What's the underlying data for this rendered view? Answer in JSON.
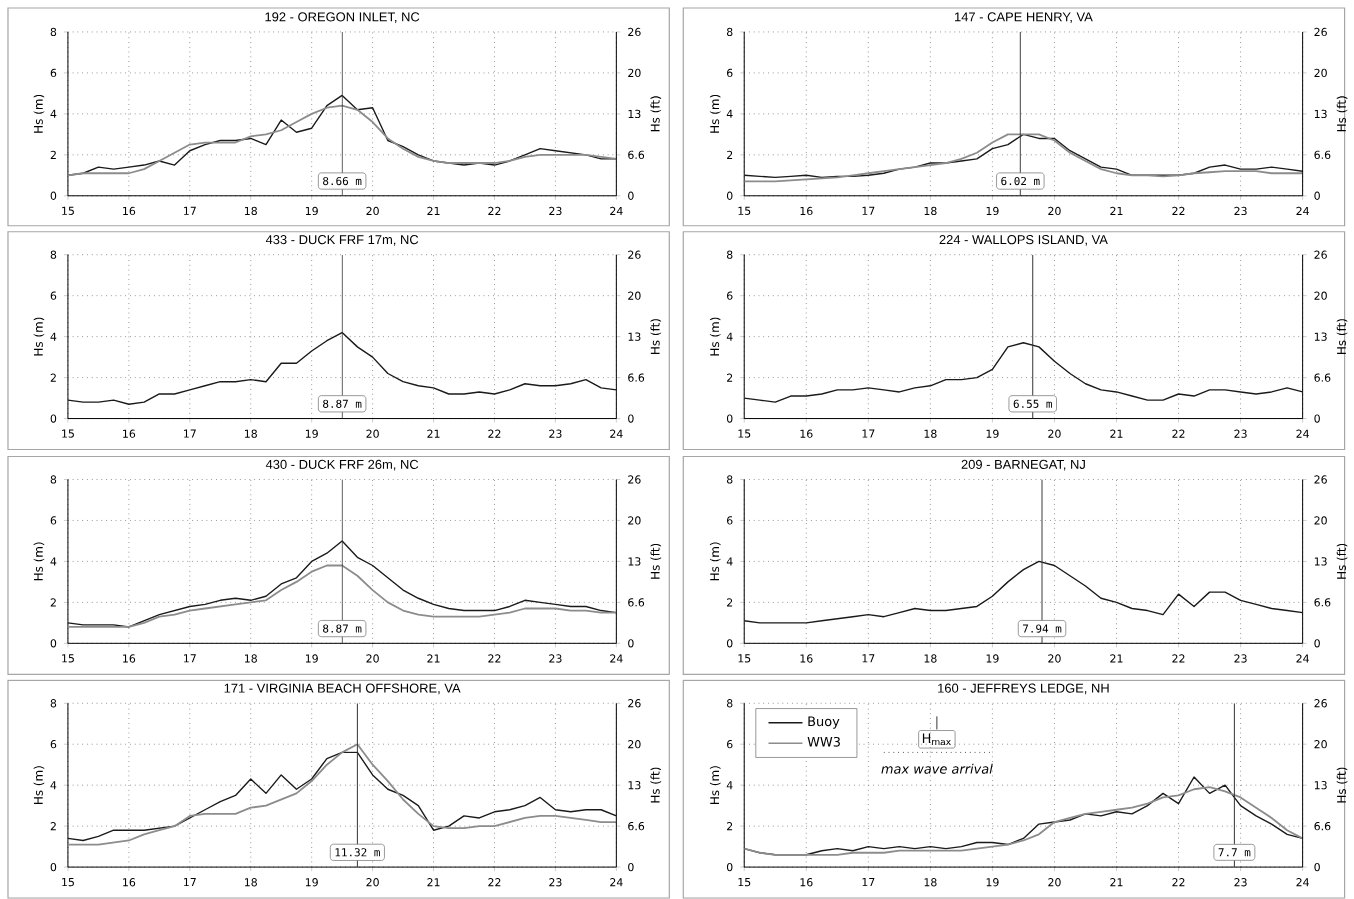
{
  "chart_data": [
    {
      "type": "line",
      "title": "192 - OREGON INLET, NC",
      "ylabel": "Hs (m)",
      "y2label": "Hs (ft)",
      "x": [
        15,
        15.25,
        15.5,
        15.75,
        16,
        16.25,
        16.5,
        16.75,
        17,
        17.25,
        17.5,
        17.75,
        18,
        18.25,
        18.5,
        18.75,
        19,
        19.25,
        19.5,
        19.75,
        20,
        20.25,
        20.5,
        20.75,
        21,
        21.25,
        21.5,
        21.75,
        22,
        22.25,
        22.5,
        22.75,
        23,
        23.25,
        23.5,
        23.75,
        24
      ],
      "series": [
        {
          "color": "#1a1a1a",
          "values": [
            1.0,
            1.1,
            1.4,
            1.3,
            1.4,
            1.5,
            1.7,
            1.5,
            2.2,
            2.5,
            2.7,
            2.7,
            2.8,
            2.5,
            3.7,
            3.1,
            3.3,
            4.4,
            4.9,
            4.2,
            4.3,
            2.7,
            2.4,
            2.0,
            1.7,
            1.6,
            1.5,
            1.6,
            1.5,
            1.7,
            2.0,
            2.3,
            2.2,
            2.1,
            2.0,
            1.8,
            1.8
          ]
        },
        {
          "color": "#8c8c8c",
          "values": [
            1.0,
            1.1,
            1.1,
            1.1,
            1.1,
            1.3,
            1.7,
            2.1,
            2.5,
            2.6,
            2.6,
            2.6,
            2.9,
            3.0,
            3.2,
            3.6,
            4.0,
            4.3,
            4.4,
            4.2,
            3.6,
            2.8,
            2.3,
            1.9,
            1.7,
            1.6,
            1.6,
            1.6,
            1.6,
            1.7,
            1.9,
            2.0,
            2.0,
            2.0,
            2.0,
            1.9,
            1.8
          ]
        }
      ],
      "xlim": [
        15,
        24
      ],
      "ylim": [
        0,
        8
      ],
      "xticks": [
        15,
        16,
        17,
        18,
        19,
        20,
        21,
        22,
        23,
        24
      ],
      "yticks": [
        0,
        2,
        4,
        6,
        8
      ],
      "y2lim": [
        0,
        26.25
      ],
      "y2ticks": [
        0,
        {
          "value": 6.56,
          "label": "6.6"
        },
        {
          "value": 13.12,
          "label": "13"
        },
        {
          "value": 19.69,
          "label": "20"
        },
        {
          "value": 26.25,
          "label": "26"
        }
      ],
      "ref_lines": [
        {
          "axis": "x",
          "value": 19.5,
          "label": "8.66 m"
        }
      ],
      "grid": true,
      "line_style": "solid"
    },
    {
      "type": "line",
      "title": "147 - CAPE HENRY, VA",
      "ylabel": "Hs (m)",
      "y2label": "Hs (ft)",
      "x": [
        15,
        15.25,
        15.5,
        15.75,
        16,
        16.25,
        16.5,
        16.75,
        17,
        17.25,
        17.5,
        17.75,
        18,
        18.25,
        18.5,
        18.75,
        19,
        19.25,
        19.5,
        19.75,
        20,
        20.25,
        20.5,
        20.75,
        21,
        21.25,
        21.5,
        21.75,
        22,
        22.25,
        22.5,
        22.75,
        23,
        23.25,
        23.5,
        23.75,
        24
      ],
      "series": [
        {
          "color": "#1a1a1a",
          "values": [
            1.0,
            0.95,
            0.9,
            0.95,
            1.0,
            0.9,
            0.95,
            0.95,
            1.0,
            1.1,
            1.3,
            1.4,
            1.6,
            1.6,
            1.7,
            1.8,
            2.3,
            2.5,
            3.0,
            2.8,
            2.8,
            2.2,
            1.8,
            1.4,
            1.3,
            1.0,
            1.0,
            1.0,
            1.0,
            1.1,
            1.4,
            1.5,
            1.3,
            1.3,
            1.4,
            1.3,
            1.2
          ]
        },
        {
          "color": "#8c8c8c",
          "values": [
            0.7,
            0.7,
            0.7,
            0.75,
            0.8,
            0.85,
            0.9,
            1.0,
            1.1,
            1.2,
            1.3,
            1.4,
            1.5,
            1.6,
            1.8,
            2.1,
            2.6,
            3.0,
            3.0,
            3.0,
            2.7,
            2.1,
            1.7,
            1.3,
            1.1,
            1.0,
            1.0,
            0.95,
            1.0,
            1.1,
            1.15,
            1.2,
            1.2,
            1.2,
            1.1,
            1.1,
            1.1
          ]
        }
      ],
      "xlim": [
        15,
        24
      ],
      "ylim": [
        0,
        8
      ],
      "xticks": [
        15,
        16,
        17,
        18,
        19,
        20,
        21,
        22,
        23,
        24
      ],
      "yticks": [
        0,
        2,
        4,
        6,
        8
      ],
      "y2lim": [
        0,
        26.25
      ],
      "y2ticks": [
        0,
        {
          "value": 6.56,
          "label": "6.6"
        },
        {
          "value": 13.12,
          "label": "13"
        },
        {
          "value": 19.69,
          "label": "20"
        },
        {
          "value": 26.25,
          "label": "26"
        }
      ],
      "ref_lines": [
        {
          "axis": "x",
          "value": 19.45,
          "label": "6.02 m"
        }
      ],
      "grid": true,
      "line_style": "solid"
    },
    {
      "type": "line",
      "title": "433 - DUCK FRF 17m, NC",
      "ylabel": "Hs (m)",
      "y2label": "Hs (ft)",
      "x": [
        15,
        15.25,
        15.5,
        15.75,
        16,
        16.25,
        16.5,
        16.75,
        17,
        17.25,
        17.5,
        17.75,
        18,
        18.25,
        18.5,
        18.75,
        19,
        19.25,
        19.5,
        19.75,
        20,
        20.25,
        20.5,
        20.75,
        21,
        21.25,
        21.5,
        21.75,
        22,
        22.25,
        22.5,
        22.75,
        23,
        23.25,
        23.5,
        23.75,
        24
      ],
      "series": [
        {
          "color": "#1a1a1a",
          "values": [
            0.9,
            0.8,
            0.8,
            0.9,
            0.7,
            0.8,
            1.2,
            1.2,
            1.4,
            1.6,
            1.8,
            1.8,
            1.9,
            1.8,
            2.7,
            2.7,
            3.3,
            3.8,
            4.2,
            3.5,
            3.0,
            2.2,
            1.8,
            1.6,
            1.5,
            1.2,
            1.2,
            1.3,
            1.2,
            1.4,
            1.7,
            1.6,
            1.6,
            1.7,
            1.9,
            1.5,
            1.4
          ]
        }
      ],
      "xlim": [
        15,
        24
      ],
      "ylim": [
        0,
        8
      ],
      "xticks": [
        15,
        16,
        17,
        18,
        19,
        20,
        21,
        22,
        23,
        24
      ],
      "yticks": [
        0,
        2,
        4,
        6,
        8
      ],
      "y2lim": [
        0,
        26.25
      ],
      "y2ticks": [
        0,
        {
          "value": 6.56,
          "label": "6.6"
        },
        {
          "value": 13.12,
          "label": "13"
        },
        {
          "value": 19.69,
          "label": "20"
        },
        {
          "value": 26.25,
          "label": "26"
        }
      ],
      "ref_lines": [
        {
          "axis": "x",
          "value": 19.5,
          "label": "8.87 m"
        }
      ],
      "grid": true,
      "line_style": "solid"
    },
    {
      "type": "line",
      "title": "224 - WALLOPS ISLAND, VA",
      "ylabel": "Hs (m)",
      "y2label": "Hs (ft)",
      "x": [
        15,
        15.25,
        15.5,
        15.75,
        16,
        16.25,
        16.5,
        16.75,
        17,
        17.25,
        17.5,
        17.75,
        18,
        18.25,
        18.5,
        18.75,
        19,
        19.25,
        19.5,
        19.75,
        20,
        20.25,
        20.5,
        20.75,
        21,
        21.25,
        21.5,
        21.75,
        22,
        22.25,
        22.5,
        22.75,
        23,
        23.25,
        23.5,
        23.75,
        24
      ],
      "series": [
        {
          "color": "#1a1a1a",
          "values": [
            1.0,
            0.9,
            0.8,
            1.1,
            1.1,
            1.2,
            1.4,
            1.4,
            1.5,
            1.4,
            1.3,
            1.5,
            1.6,
            1.9,
            1.9,
            2.0,
            2.4,
            3.5,
            3.7,
            3.5,
            2.8,
            2.2,
            1.7,
            1.4,
            1.3,
            1.1,
            0.9,
            0.9,
            1.2,
            1.1,
            1.4,
            1.4,
            1.3,
            1.2,
            1.3,
            1.5,
            1.3
          ]
        }
      ],
      "xlim": [
        15,
        24
      ],
      "ylim": [
        0,
        8
      ],
      "xticks": [
        15,
        16,
        17,
        18,
        19,
        20,
        21,
        22,
        23,
        24
      ],
      "yticks": [
        0,
        2,
        4,
        6,
        8
      ],
      "y2lim": [
        0,
        26.25
      ],
      "y2ticks": [
        0,
        {
          "value": 6.56,
          "label": "6.6"
        },
        {
          "value": 13.12,
          "label": "13"
        },
        {
          "value": 19.69,
          "label": "20"
        },
        {
          "value": 26.25,
          "label": "26"
        }
      ],
      "ref_lines": [
        {
          "axis": "x",
          "value": 19.65,
          "label": "6.55 m"
        }
      ],
      "grid": true,
      "line_style": "solid"
    },
    {
      "type": "line",
      "title": "430 - DUCK FRF 26m, NC",
      "ylabel": "Hs (m)",
      "y2label": "Hs (ft)",
      "x": [
        15,
        15.25,
        15.5,
        15.75,
        16,
        16.25,
        16.5,
        16.75,
        17,
        17.25,
        17.5,
        17.75,
        18,
        18.25,
        18.5,
        18.75,
        19,
        19.25,
        19.5,
        19.75,
        20,
        20.25,
        20.5,
        20.75,
        21,
        21.25,
        21.5,
        21.75,
        22,
        22.25,
        22.5,
        22.75,
        23,
        23.25,
        23.5,
        23.75,
        24
      ],
      "series": [
        {
          "color": "#1a1a1a",
          "values": [
            1.0,
            0.9,
            0.9,
            0.9,
            0.8,
            1.1,
            1.4,
            1.6,
            1.8,
            1.9,
            2.1,
            2.2,
            2.1,
            2.3,
            2.9,
            3.2,
            4.0,
            4.4,
            5.0,
            4.2,
            3.8,
            3.2,
            2.6,
            2.2,
            1.9,
            1.7,
            1.6,
            1.6,
            1.6,
            1.8,
            2.1,
            2.0,
            1.9,
            1.8,
            1.8,
            1.6,
            1.5
          ]
        },
        {
          "color": "#8c8c8c",
          "values": [
            0.8,
            0.8,
            0.8,
            0.8,
            0.8,
            1.0,
            1.3,
            1.4,
            1.6,
            1.7,
            1.8,
            1.9,
            2.0,
            2.1,
            2.6,
            3.0,
            3.5,
            3.8,
            3.8,
            3.3,
            2.6,
            2.0,
            1.6,
            1.4,
            1.3,
            1.3,
            1.3,
            1.3,
            1.4,
            1.5,
            1.7,
            1.7,
            1.7,
            1.6,
            1.6,
            1.5,
            1.5
          ]
        }
      ],
      "xlim": [
        15,
        24
      ],
      "ylim": [
        0,
        8
      ],
      "xticks": [
        15,
        16,
        17,
        18,
        19,
        20,
        21,
        22,
        23,
        24
      ],
      "yticks": [
        0,
        2,
        4,
        6,
        8
      ],
      "y2lim": [
        0,
        26.25
      ],
      "y2ticks": [
        0,
        {
          "value": 6.56,
          "label": "6.6"
        },
        {
          "value": 13.12,
          "label": "13"
        },
        {
          "value": 19.69,
          "label": "20"
        },
        {
          "value": 26.25,
          "label": "26"
        }
      ],
      "ref_lines": [
        {
          "axis": "x",
          "value": 19.5,
          "label": "8.87 m"
        }
      ],
      "grid": true,
      "line_style": "solid"
    },
    {
      "type": "line",
      "title": "209 - BARNEGAT, NJ",
      "ylabel": "Hs (m)",
      "y2label": "Hs (ft)",
      "x": [
        15,
        15.25,
        15.5,
        15.75,
        16,
        16.25,
        16.5,
        16.75,
        17,
        17.25,
        17.5,
        17.75,
        18,
        18.25,
        18.5,
        18.75,
        19,
        19.25,
        19.5,
        19.75,
        20,
        20.25,
        20.5,
        20.75,
        21,
        21.25,
        21.5,
        21.75,
        22,
        22.25,
        22.5,
        22.75,
        23,
        23.25,
        23.5,
        23.75,
        24
      ],
      "series": [
        {
          "color": "#1a1a1a",
          "values": [
            1.1,
            1.0,
            1.0,
            1.0,
            1.0,
            1.1,
            1.2,
            1.3,
            1.4,
            1.3,
            1.5,
            1.7,
            1.6,
            1.6,
            1.7,
            1.8,
            2.3,
            3.0,
            3.6,
            4.0,
            3.8,
            3.3,
            2.8,
            2.2,
            2.0,
            1.7,
            1.6,
            1.4,
            2.4,
            1.8,
            2.5,
            2.5,
            2.1,
            1.9,
            1.7,
            1.6,
            1.5
          ]
        }
      ],
      "xlim": [
        15,
        24
      ],
      "ylim": [
        0,
        8
      ],
      "xticks": [
        15,
        16,
        17,
        18,
        19,
        20,
        21,
        22,
        23,
        24
      ],
      "yticks": [
        0,
        2,
        4,
        6,
        8
      ],
      "y2lim": [
        0,
        26.25
      ],
      "y2ticks": [
        0,
        {
          "value": 6.56,
          "label": "6.6"
        },
        {
          "value": 13.12,
          "label": "13"
        },
        {
          "value": 19.69,
          "label": "20"
        },
        {
          "value": 26.25,
          "label": "26"
        }
      ],
      "ref_lines": [
        {
          "axis": "x",
          "value": 19.8,
          "label": "7.94 m"
        }
      ],
      "grid": true,
      "line_style": "solid"
    },
    {
      "type": "line",
      "title": "171 - VIRGINIA BEACH OFFSHORE, VA",
      "ylabel": "Hs (m)",
      "y2label": "Hs (ft)",
      "x": [
        15,
        15.25,
        15.5,
        15.75,
        16,
        16.25,
        16.5,
        16.75,
        17,
        17.25,
        17.5,
        17.75,
        18,
        18.25,
        18.5,
        18.75,
        19,
        19.25,
        19.5,
        19.75,
        20,
        20.25,
        20.5,
        20.75,
        21,
        21.25,
        21.5,
        21.75,
        22,
        22.25,
        22.5,
        22.75,
        23,
        23.25,
        23.5,
        23.75,
        24
      ],
      "series": [
        {
          "color": "#1a1a1a",
          "values": [
            1.4,
            1.3,
            1.5,
            1.8,
            1.8,
            1.8,
            1.9,
            2.0,
            2.4,
            2.8,
            3.2,
            3.5,
            4.3,
            3.6,
            4.5,
            3.8,
            4.3,
            5.3,
            5.6,
            5.6,
            4.5,
            3.8,
            3.5,
            3.0,
            1.8,
            2.0,
            2.5,
            2.4,
            2.7,
            2.8,
            3.0,
            3.4,
            2.8,
            2.7,
            2.8,
            2.8,
            2.5
          ]
        },
        {
          "color": "#8c8c8c",
          "values": [
            1.1,
            1.1,
            1.1,
            1.2,
            1.3,
            1.6,
            1.8,
            2.0,
            2.5,
            2.6,
            2.6,
            2.6,
            2.9,
            3.0,
            3.3,
            3.6,
            4.2,
            5.0,
            5.6,
            6.0,
            5.0,
            4.2,
            3.3,
            2.6,
            2.0,
            1.9,
            1.9,
            2.0,
            2.0,
            2.2,
            2.4,
            2.5,
            2.5,
            2.4,
            2.3,
            2.2,
            2.2
          ]
        }
      ],
      "xlim": [
        15,
        24
      ],
      "ylim": [
        0,
        8
      ],
      "xticks": [
        15,
        16,
        17,
        18,
        19,
        20,
        21,
        22,
        23,
        24
      ],
      "yticks": [
        0,
        2,
        4,
        6,
        8
      ],
      "y2lim": [
        0,
        26.25
      ],
      "y2ticks": [
        0,
        {
          "value": 6.56,
          "label": "6.6"
        },
        {
          "value": 13.12,
          "label": "13"
        },
        {
          "value": 19.69,
          "label": "20"
        },
        {
          "value": 26.25,
          "label": "26"
        }
      ],
      "ref_lines": [
        {
          "axis": "x",
          "value": 19.75,
          "label": "11.32 m"
        }
      ],
      "grid": true,
      "line_style": "solid"
    },
    {
      "type": "line",
      "title": "160 - JEFFREYS LEDGE, NH",
      "ylabel": "Hs (m)",
      "y2label": "Hs (ft)",
      "x": [
        15,
        15.25,
        15.5,
        15.75,
        16,
        16.25,
        16.5,
        16.75,
        17,
        17.25,
        17.5,
        17.75,
        18,
        18.25,
        18.5,
        18.75,
        19,
        19.25,
        19.5,
        19.75,
        20,
        20.25,
        20.5,
        20.75,
        21,
        21.25,
        21.5,
        21.75,
        22,
        22.25,
        22.5,
        22.75,
        23,
        23.25,
        23.5,
        23.75,
        24
      ],
      "series": [
        {
          "name": "Buoy",
          "color": "#1a1a1a",
          "values": [
            0.9,
            0.7,
            0.6,
            0.6,
            0.6,
            0.8,
            0.9,
            0.8,
            1.0,
            0.9,
            1.0,
            0.9,
            1.0,
            0.9,
            1.0,
            1.2,
            1.2,
            1.1,
            1.4,
            2.1,
            2.2,
            2.3,
            2.6,
            2.5,
            2.7,
            2.6,
            3.0,
            3.6,
            3.1,
            4.4,
            3.6,
            4.0,
            3.0,
            2.5,
            2.1,
            1.6,
            1.4
          ]
        },
        {
          "name": "WW3",
          "color": "#8c8c8c",
          "values": [
            0.9,
            0.7,
            0.6,
            0.6,
            0.6,
            0.6,
            0.6,
            0.7,
            0.7,
            0.7,
            0.8,
            0.8,
            0.8,
            0.8,
            0.8,
            0.9,
            1.0,
            1.1,
            1.3,
            1.6,
            2.2,
            2.4,
            2.6,
            2.7,
            2.8,
            2.9,
            3.1,
            3.4,
            3.5,
            3.8,
            3.9,
            3.7,
            3.4,
            2.9,
            2.4,
            1.8,
            1.4
          ]
        }
      ],
      "xlim": [
        15,
        24
      ],
      "ylim": [
        0,
        8
      ],
      "xticks": [
        15,
        16,
        17,
        18,
        19,
        20,
        21,
        22,
        23,
        24
      ],
      "yticks": [
        0,
        2,
        4,
        6,
        8
      ],
      "y2lim": [
        0,
        26.25
      ],
      "y2ticks": [
        0,
        {
          "value": 6.56,
          "label": "6.6"
        },
        {
          "value": 13.12,
          "label": "13"
        },
        {
          "value": 19.69,
          "label": "20"
        },
        {
          "value": 26.25,
          "label": "26"
        }
      ],
      "ref_lines": [
        {
          "axis": "x",
          "value": 22.9,
          "label": "7.7 m"
        }
      ],
      "grid": true,
      "line_style": "solid",
      "legend": "top left",
      "annotations": [
        "H$_{max}$",
        "max wave arrival"
      ]
    }
  ]
}
